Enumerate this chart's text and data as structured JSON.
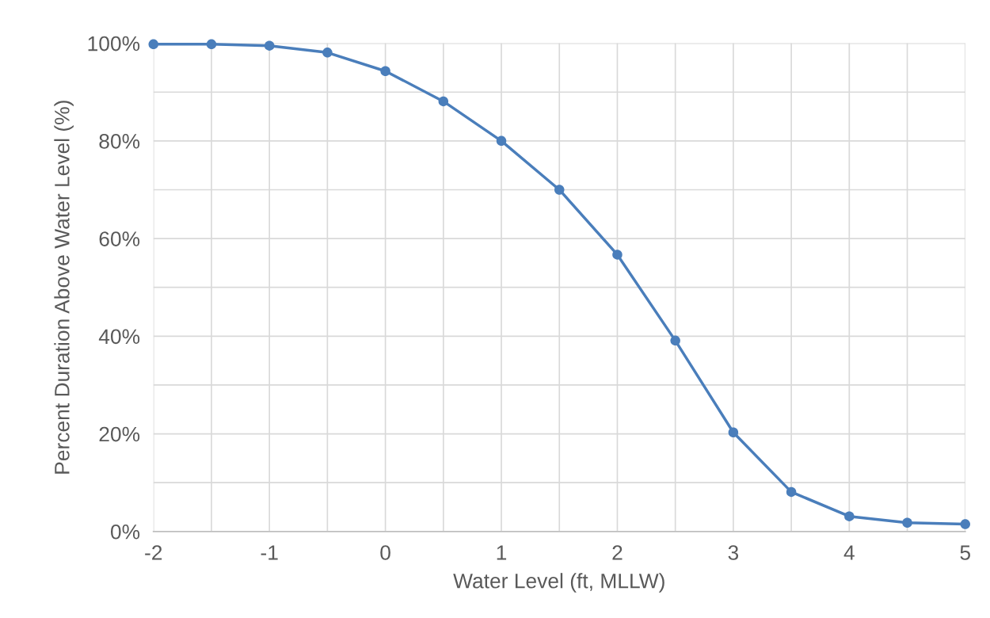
{
  "chart_data": {
    "type": "line",
    "xlabel": "Water Level (ft, MLLW)",
    "ylabel": "Percent Duration Above Water Level (%)",
    "x": [
      -2,
      -1.5,
      -1,
      -0.5,
      0,
      0.5,
      1,
      1.5,
      2,
      2.5,
      3,
      3.5,
      4,
      4.5,
      5
    ],
    "series": [
      {
        "color": "#4a7ebb",
        "values": [
          99.8,
          99.8,
          99.5,
          98.1,
          94.3,
          88.1,
          80.0,
          70.0,
          56.7,
          39.1,
          20.3,
          8.1,
          3.1,
          1.8,
          1.5
        ]
      }
    ],
    "xlim": [
      -2,
      5
    ],
    "xticks": [
      -2,
      {
        "value": -1.5,
        "label": null
      },
      -1,
      {
        "value": -0.5,
        "label": null
      },
      0,
      {
        "value": 0.5,
        "label": null
      },
      1,
      {
        "value": 1.5,
        "label": null
      },
      2,
      {
        "value": 2.5,
        "label": null
      },
      3,
      {
        "value": 3.5,
        "label": null
      },
      4,
      {
        "value": 4.5,
        "label": null
      },
      5
    ],
    "ylim": [
      0,
      100
    ],
    "yticks": [
      {
        "value": 0,
        "label": "0%"
      },
      {
        "value": 10,
        "label": null
      },
      {
        "value": 20,
        "label": "20%"
      },
      {
        "value": 30,
        "label": null
      },
      {
        "value": 40,
        "label": "40%"
      },
      {
        "value": 50,
        "label": null
      },
      {
        "value": 60,
        "label": "60%"
      },
      {
        "value": 70,
        "label": null
      },
      {
        "value": 80,
        "label": "80%"
      },
      {
        "value": 90,
        "label": null
      },
      {
        "value": 100,
        "label": "100%"
      }
    ],
    "grid": true,
    "marker": "circle",
    "line_style": "solid"
  }
}
